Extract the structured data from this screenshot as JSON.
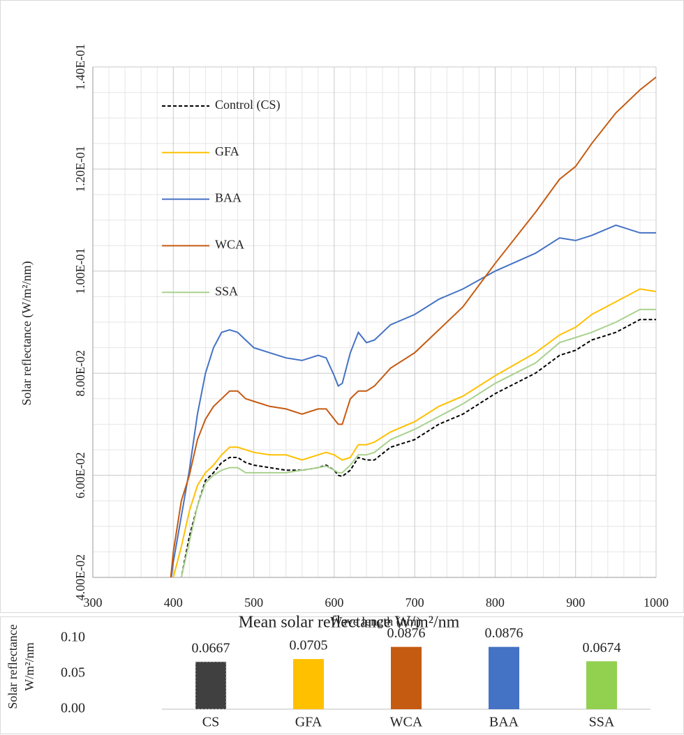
{
  "chart_data": [
    {
      "type": "line",
      "x_label": "Wave length (nm)",
      "y_label": "Solar reflectance (W/m²/nm)",
      "x": [
        395,
        400,
        410,
        420,
        430,
        440,
        450,
        460,
        470,
        480,
        490,
        500,
        520,
        540,
        560,
        580,
        590,
        600,
        605,
        610,
        620,
        630,
        640,
        650,
        670,
        700,
        730,
        760,
        800,
        850,
        880,
        900,
        920,
        950,
        980,
        1000
      ],
      "series": [
        {
          "name": "Control (CS)",
          "color": "#000000",
          "dashed": true,
          "values": [
            0.03,
            0.033,
            0.04,
            0.048,
            0.054,
            0.059,
            0.0605,
            0.0625,
            0.0635,
            0.0635,
            0.0625,
            0.062,
            0.0615,
            0.061,
            0.061,
            0.0615,
            0.062,
            0.061,
            0.06,
            0.0598,
            0.061,
            0.0635,
            0.063,
            0.063,
            0.0655,
            0.067,
            0.07,
            0.072,
            0.076,
            0.08,
            0.0835,
            0.0845,
            0.0865,
            0.088,
            0.0905,
            0.0905
          ]
        },
        {
          "name": "GFA",
          "color": "#FFC000",
          "values": [
            0.035,
            0.04,
            0.046,
            0.053,
            0.058,
            0.0605,
            0.062,
            0.064,
            0.0655,
            0.0655,
            0.065,
            0.0645,
            0.064,
            0.064,
            0.063,
            0.064,
            0.0645,
            0.064,
            0.0635,
            0.063,
            0.0635,
            0.066,
            0.066,
            0.0665,
            0.0685,
            0.0705,
            0.0735,
            0.0755,
            0.0795,
            0.084,
            0.0875,
            0.089,
            0.0915,
            0.094,
            0.0965,
            0.096
          ]
        },
        {
          "name": "BAA",
          "color": "#4472C4",
          "values": [
            0.037,
            0.043,
            0.052,
            0.061,
            0.072,
            0.08,
            0.085,
            0.088,
            0.0885,
            0.088,
            0.0865,
            0.085,
            0.084,
            0.083,
            0.0825,
            0.0835,
            0.083,
            0.0795,
            0.0775,
            0.078,
            0.084,
            0.088,
            0.086,
            0.0865,
            0.0895,
            0.0915,
            0.0945,
            0.0965,
            0.1,
            0.1035,
            0.1065,
            0.106,
            0.107,
            0.109,
            0.1075,
            0.1075
          ]
        },
        {
          "name": "WCA",
          "color": "#C55A11",
          "values": [
            0.037,
            0.045,
            0.055,
            0.06,
            0.067,
            0.071,
            0.0735,
            0.075,
            0.0765,
            0.0765,
            0.075,
            0.0745,
            0.0735,
            0.073,
            0.072,
            0.073,
            0.073,
            0.071,
            0.07,
            0.07,
            0.075,
            0.0765,
            0.0765,
            0.0775,
            0.081,
            0.084,
            0.0885,
            0.093,
            0.1015,
            0.1115,
            0.118,
            0.1205,
            0.125,
            0.131,
            0.1355,
            0.138
          ]
        },
        {
          "name": "SSA",
          "color": "#A9D18E",
          "values": [
            0.03,
            0.033,
            0.04,
            0.047,
            0.054,
            0.0585,
            0.06,
            0.061,
            0.0615,
            0.0615,
            0.0605,
            0.0605,
            0.0605,
            0.0605,
            0.061,
            0.0615,
            0.0618,
            0.061,
            0.0605,
            0.0605,
            0.062,
            0.064,
            0.064,
            0.0645,
            0.067,
            0.069,
            0.0715,
            0.074,
            0.078,
            0.082,
            0.086,
            0.087,
            0.088,
            0.09,
            0.0925,
            0.0925
          ]
        }
      ],
      "xlim": [
        300,
        1000
      ],
      "xticks": [
        300,
        400,
        500,
        600,
        700,
        800,
        900,
        1000
      ],
      "ylim": [
        0.04,
        0.14
      ],
      "yticks": [
        {
          "value": 0.04,
          "label": "4.00E-02"
        },
        {
          "value": 0.06,
          "label": "6.00E-02"
        },
        {
          "value": 0.08,
          "label": "8.00E-02"
        },
        {
          "value": 0.1,
          "label": "1.00E-01"
        },
        {
          "value": 0.12,
          "label": "1.20E-01"
        },
        {
          "value": 0.14,
          "label": "1.40E-01"
        }
      ],
      "grid": true,
      "minor_grid": true,
      "legend": "upper left"
    },
    {
      "type": "bar",
      "title": "Mean solar reflectance  W/m²/nm",
      "y_label": [
        "Solar reflectance",
        "W/m²/nm"
      ],
      "categories": [
        "CS",
        "GFA",
        "WCA",
        "BAA",
        "SSA"
      ],
      "values": [
        0.0667,
        0.0705,
        0.0876,
        0.0876,
        0.0674
      ],
      "colors": [
        "#404040",
        "#FFC000",
        "#C55A11",
        "#4472C4",
        "#92D050"
      ],
      "ylim": [
        0,
        0.1
      ],
      "yticks": [
        {
          "value": 0,
          "label": "0.00"
        },
        {
          "value": 0.05,
          "label": "0.05"
        },
        {
          "value": 0.1,
          "label": "0.10"
        }
      ]
    }
  ]
}
